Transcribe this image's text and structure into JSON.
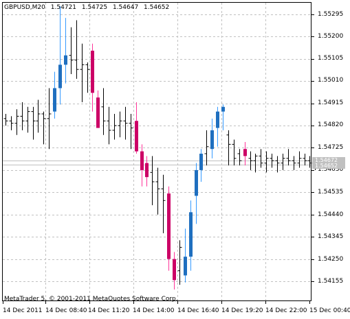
{
  "header": {
    "symbol": "GBPUSD,M20",
    "open": "1.54721",
    "high": "1.54725",
    "low": "1.54647",
    "close": "1.54652"
  },
  "footer": {
    "copyright": "MetaTrader 5, © 2001-2011 MetaQuotes Software Corp."
  },
  "price_axis": {
    "labels": [
      "1.55295",
      "1.55200",
      "1.55105",
      "1.55010",
      "1.54915",
      "1.54820",
      "1.54725",
      "1.54630",
      "1.54535",
      "1.54440",
      "1.54345",
      "1.54250",
      "1.54155"
    ]
  },
  "price_boxes": {
    "ask": "1.54672",
    "bid": "1.54652"
  },
  "time_axis": {
    "labels": [
      "14 Dec 2011",
      "14 Dec 08:40",
      "14 Dec 11:20",
      "14 Dec 14:00",
      "14 Dec 16:40",
      "14 Dec 19:20",
      "14 Dec 22:00",
      "15 Dec 00:40"
    ]
  },
  "colors": {
    "bull": "#3399ff",
    "bull_dark": "#1f6fbf",
    "bear": "#ff3399",
    "bear_dark": "#cc0066",
    "bar": "#000000",
    "grid": "#c0c0c0",
    "price_box": "#c0c0c0"
  },
  "chart_data": {
    "type": "candlestick",
    "symbol": "GBPUSD",
    "timeframe": "M20",
    "ylim": [
      1.541,
      1.5535
    ],
    "series": [
      {
        "s": "bar",
        "o": 1.5485,
        "h": 1.5487,
        "l": 1.5482,
        "c": 1.5484
      },
      {
        "s": "bar",
        "o": 1.5484,
        "h": 1.5486,
        "l": 1.548,
        "c": 1.5483
      },
      {
        "s": "bar",
        "o": 1.5483,
        "h": 1.5489,
        "l": 1.5478,
        "c": 1.5486
      },
      {
        "s": "bar",
        "o": 1.5486,
        "h": 1.5492,
        "l": 1.548,
        "c": 1.5484
      },
      {
        "s": "bar",
        "o": 1.5484,
        "h": 1.549,
        "l": 1.5479,
        "c": 1.5488
      },
      {
        "s": "bar",
        "o": 1.5488,
        "h": 1.549,
        "l": 1.5476,
        "c": 1.5484
      },
      {
        "s": "bar",
        "o": 1.5484,
        "h": 1.5493,
        "l": 1.5479,
        "c": 1.5487
      },
      {
        "s": "bar",
        "o": 1.5487,
        "h": 1.5488,
        "l": 1.5474,
        "c": 1.5485
      },
      {
        "s": "bar",
        "o": 1.5485,
        "h": 1.5498,
        "l": 1.5472,
        "c": 1.5487
      },
      {
        "s": "bull",
        "o": 1.5488,
        "h": 1.5505,
        "l": 1.5485,
        "c": 1.5498
      },
      {
        "s": "bull",
        "o": 1.5498,
        "h": 1.5533,
        "l": 1.5491,
        "c": 1.5508
      },
      {
        "s": "bull",
        "o": 1.5508,
        "h": 1.5528,
        "l": 1.55,
        "c": 1.5512
      },
      {
        "s": "bar",
        "o": 1.5512,
        "h": 1.5524,
        "l": 1.5504,
        "c": 1.551
      },
      {
        "s": "bar",
        "o": 1.551,
        "h": 1.5527,
        "l": 1.5502,
        "c": 1.5506
      },
      {
        "s": "bar",
        "o": 1.5506,
        "h": 1.5517,
        "l": 1.5492,
        "c": 1.5508
      },
      {
        "s": "bar",
        "o": 1.5508,
        "h": 1.5509,
        "l": 1.5496,
        "c": 1.5506
      },
      {
        "s": "bear",
        "o": 1.5514,
        "h": 1.5517,
        "l": 1.5488,
        "c": 1.5496
      },
      {
        "s": "bear",
        "o": 1.5494,
        "h": 1.5497,
        "l": 1.5481,
        "c": 1.5481
      },
      {
        "s": "bar",
        "o": 1.549,
        "h": 1.5498,
        "l": 1.5478,
        "c": 1.5484
      },
      {
        "s": "bar",
        "o": 1.5484,
        "h": 1.549,
        "l": 1.5474,
        "c": 1.548
      },
      {
        "s": "bar",
        "o": 1.548,
        "h": 1.5487,
        "l": 1.5476,
        "c": 1.5482
      },
      {
        "s": "bar",
        "o": 1.5482,
        "h": 1.5488,
        "l": 1.5477,
        "c": 1.5484
      },
      {
        "s": "bar",
        "o": 1.5484,
        "h": 1.549,
        "l": 1.5476,
        "c": 1.5483
      },
      {
        "s": "bar",
        "o": 1.5483,
        "h": 1.5487,
        "l": 1.5472,
        "c": 1.5481
      },
      {
        "s": "bear",
        "o": 1.5484,
        "h": 1.5492,
        "l": 1.547,
        "c": 1.5471
      },
      {
        "s": "bear",
        "o": 1.5471,
        "h": 1.5474,
        "l": 1.5456,
        "c": 1.5463
      },
      {
        "s": "bear",
        "o": 1.5466,
        "h": 1.5469,
        "l": 1.5456,
        "c": 1.546
      },
      {
        "s": "bar",
        "o": 1.5462,
        "h": 1.5469,
        "l": 1.5448,
        "c": 1.5458
      },
      {
        "s": "bar",
        "o": 1.5458,
        "h": 1.5464,
        "l": 1.5444,
        "c": 1.5455
      },
      {
        "s": "bar",
        "o": 1.5455,
        "h": 1.5461,
        "l": 1.5436,
        "c": 1.545
      },
      {
        "s": "bear",
        "o": 1.5453,
        "h": 1.5456,
        "l": 1.542,
        "c": 1.5425
      },
      {
        "s": "bear",
        "o": 1.5425,
        "h": 1.5428,
        "l": 1.5412,
        "c": 1.5416
      },
      {
        "s": "bar",
        "o": 1.542,
        "h": 1.5433,
        "l": 1.5414,
        "c": 1.543
      },
      {
        "s": "bull",
        "o": 1.5418,
        "h": 1.5438,
        "l": 1.5415,
        "c": 1.5426
      },
      {
        "s": "bull",
        "o": 1.5426,
        "h": 1.545,
        "l": 1.542,
        "c": 1.5445
      },
      {
        "s": "bull",
        "o": 1.5452,
        "h": 1.5466,
        "l": 1.544,
        "c": 1.5463
      },
      {
        "s": "bull",
        "o": 1.5463,
        "h": 1.5472,
        "l": 1.5458,
        "c": 1.547
      },
      {
        "s": "bar",
        "o": 1.547,
        "h": 1.548,
        "l": 1.5465,
        "c": 1.5473
      },
      {
        "s": "bull",
        "o": 1.5472,
        "h": 1.5485,
        "l": 1.5468,
        "c": 1.548
      },
      {
        "s": "bull",
        "o": 1.5481,
        "h": 1.549,
        "l": 1.5473,
        "c": 1.5488
      },
      {
        "s": "bull",
        "o": 1.5488,
        "h": 1.5491,
        "l": 1.548,
        "c": 1.549
      },
      {
        "s": "bar",
        "o": 1.5478,
        "h": 1.548,
        "l": 1.5465,
        "c": 1.5474
      },
      {
        "s": "bar",
        "o": 1.5474,
        "h": 1.5476,
        "l": 1.5465,
        "c": 1.5468
      },
      {
        "s": "bar",
        "o": 1.547,
        "h": 1.5472,
        "l": 1.5465,
        "c": 1.5467
      },
      {
        "s": "bear",
        "o": 1.5472,
        "h": 1.5475,
        "l": 1.5465,
        "c": 1.5469
      },
      {
        "s": "bar",
        "o": 1.5468,
        "h": 1.5471,
        "l": 1.5463,
        "c": 1.5467
      },
      {
        "s": "bar",
        "o": 1.5467,
        "h": 1.547,
        "l": 1.5462,
        "c": 1.5469
      },
      {
        "s": "bar",
        "o": 1.5469,
        "h": 1.5472,
        "l": 1.5464,
        "c": 1.5466
      },
      {
        "s": "bar",
        "o": 1.5466,
        "h": 1.5471,
        "l": 1.5462,
        "c": 1.5468
      },
      {
        "s": "bar",
        "o": 1.5468,
        "h": 1.547,
        "l": 1.5464,
        "c": 1.5467
      },
      {
        "s": "bar",
        "o": 1.5467,
        "h": 1.5469,
        "l": 1.5462,
        "c": 1.5466
      },
      {
        "s": "bar",
        "o": 1.5466,
        "h": 1.547,
        "l": 1.5463,
        "c": 1.5468
      },
      {
        "s": "bar",
        "o": 1.5468,
        "h": 1.5472,
        "l": 1.5465,
        "c": 1.5467
      },
      {
        "s": "bar",
        "o": 1.5467,
        "h": 1.5469,
        "l": 1.5463,
        "c": 1.5466
      },
      {
        "s": "bar",
        "o": 1.5466,
        "h": 1.5471,
        "l": 1.5464,
        "c": 1.5468
      },
      {
        "s": "bar",
        "o": 1.5468,
        "h": 1.547,
        "l": 1.5465,
        "c": 1.5467
      },
      {
        "s": "bar",
        "o": 1.5467,
        "h": 1.5469,
        "l": 1.5464,
        "c": 1.5466
      },
      {
        "s": "bar",
        "o": 1.5466,
        "h": 1.5468,
        "l": 1.5463,
        "c": 1.5465
      }
    ]
  }
}
